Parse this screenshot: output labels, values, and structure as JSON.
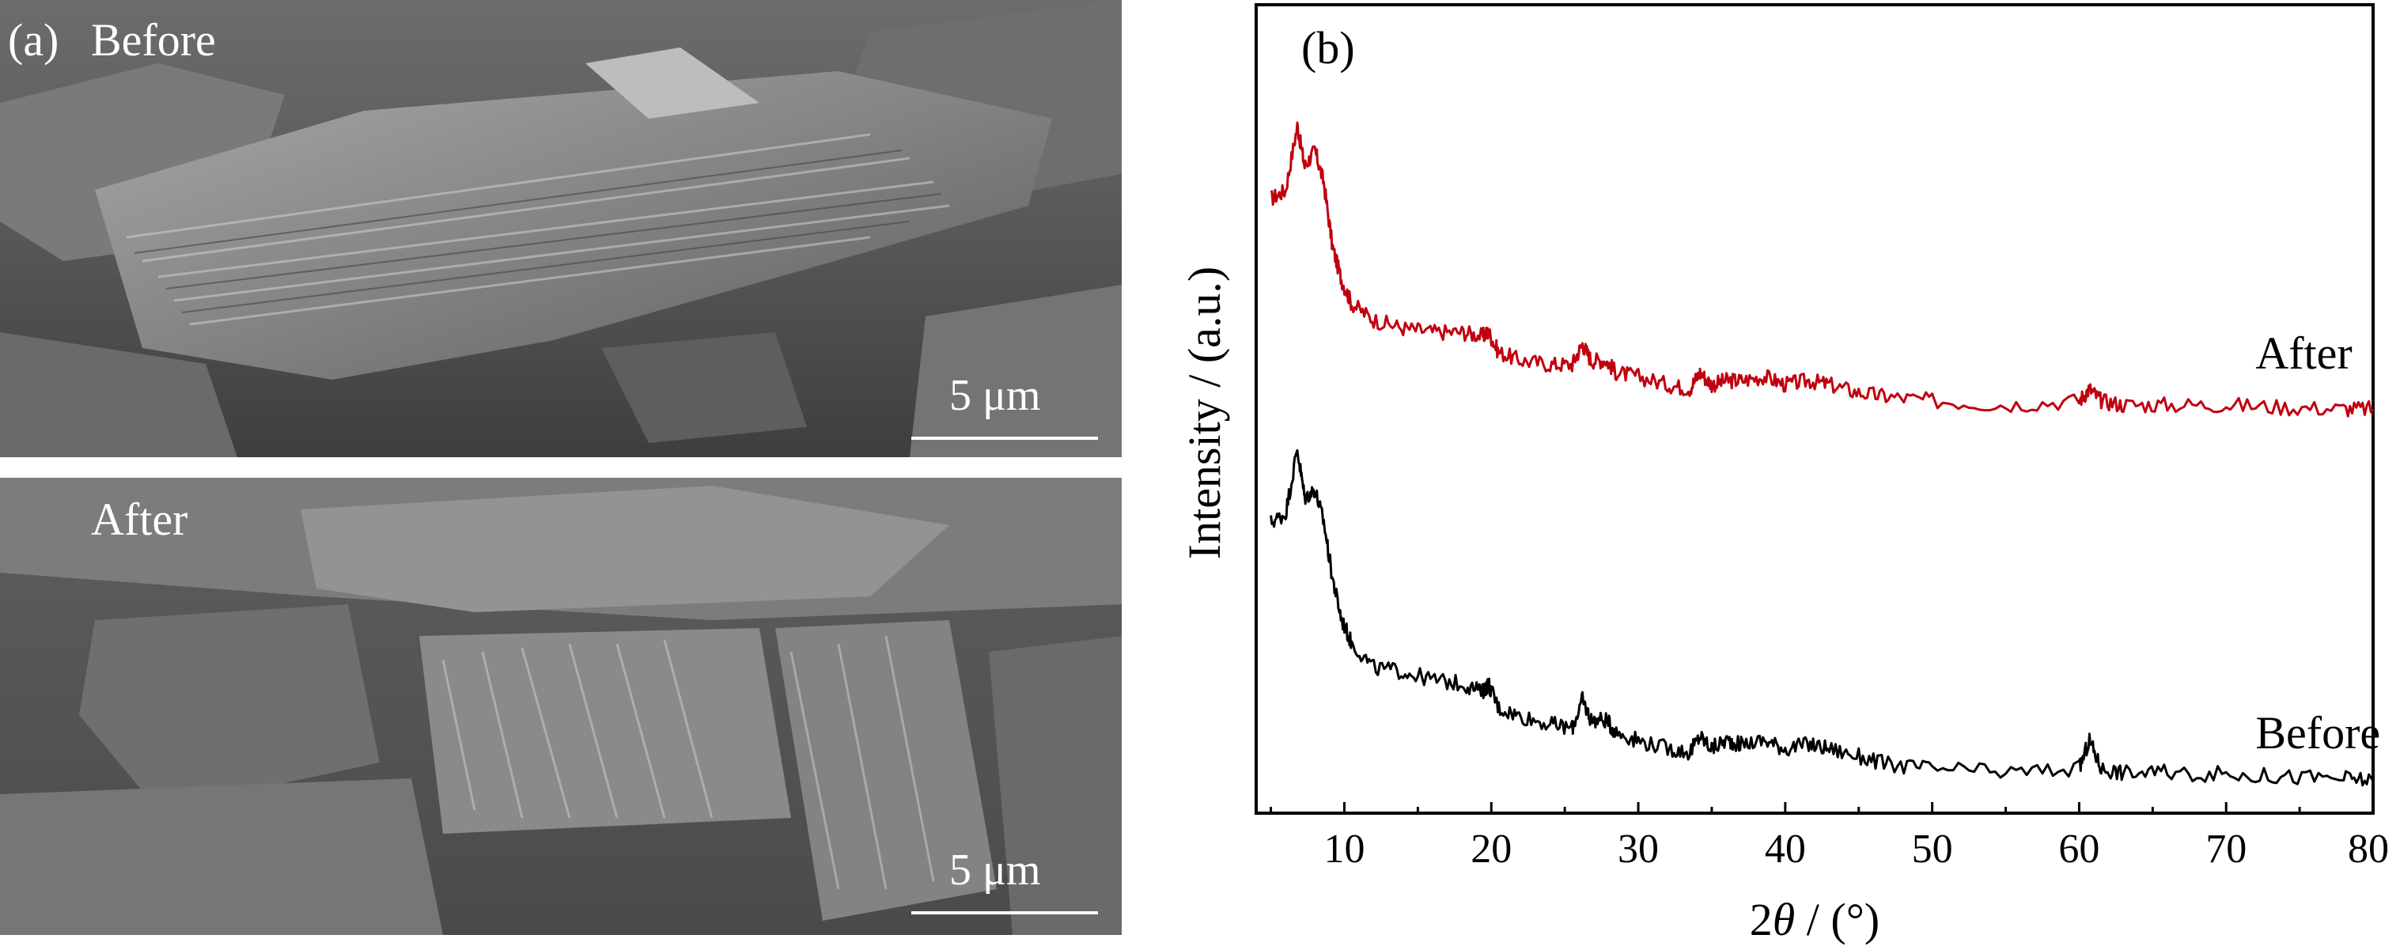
{
  "figure": {
    "panel_a": {
      "letter": "(a)",
      "top_label": "Before",
      "bottom_label": "After",
      "scale_label_top": "5 μm",
      "scale_label_bottom": "5 μm"
    },
    "panel_b": {
      "letter": "(b)"
    }
  },
  "chart_data": {
    "type": "line",
    "title": "",
    "xlabel": "2θ / (°)",
    "ylabel": "Intensity / (a.u.)",
    "xlim": [
      4,
      80
    ],
    "ylim": [
      0,
      1
    ],
    "x_ticks": [
      10,
      20,
      30,
      40,
      50,
      60,
      70,
      80
    ],
    "grid": false,
    "legend": "none",
    "series": [
      {
        "name": "After",
        "color": "#c0000f",
        "x": [
          5,
          6,
          6.8,
          7.3,
          8.0,
          8.6,
          9.2,
          9.8,
          10.5,
          12,
          14,
          16,
          18,
          19.4,
          19.8,
          20.5,
          22,
          24,
          25.5,
          26.2,
          26.8,
          27.8,
          28.5,
          30,
          32,
          33.5,
          34.2,
          35,
          36,
          37,
          38.6,
          40,
          41.6,
          43,
          45,
          47,
          50,
          55,
          60,
          60.7,
          61.5,
          63,
          66,
          70,
          74,
          78,
          80
        ],
        "y": [
          0.76,
          0.77,
          0.85,
          0.8,
          0.82,
          0.78,
          0.7,
          0.66,
          0.63,
          0.61,
          0.6,
          0.595,
          0.595,
          0.59,
          0.595,
          0.57,
          0.56,
          0.555,
          0.555,
          0.58,
          0.56,
          0.56,
          0.545,
          0.54,
          0.53,
          0.525,
          0.545,
          0.53,
          0.535,
          0.535,
          0.54,
          0.53,
          0.535,
          0.53,
          0.52,
          0.515,
          0.51,
          0.505,
          0.51,
          0.525,
          0.51,
          0.505,
          0.505,
          0.505,
          0.502,
          0.5,
          0.5
        ]
      },
      {
        "name": "Before",
        "color": "#000000",
        "x": [
          5,
          6,
          6.8,
          7.3,
          8.0,
          8.6,
          9.2,
          9.8,
          10.5,
          12,
          14,
          16,
          18,
          19.4,
          19.8,
          20.5,
          22,
          24,
          25.5,
          26.2,
          26.8,
          27.8,
          28.5,
          30,
          32,
          33.5,
          34.2,
          35,
          36,
          37,
          38.6,
          40,
          41.6,
          43,
          45,
          47,
          50,
          55,
          60,
          60.7,
          61.5,
          63,
          66,
          70,
          74,
          78,
          80
        ],
        "y": [
          0.36,
          0.37,
          0.45,
          0.39,
          0.4,
          0.36,
          0.29,
          0.24,
          0.21,
          0.18,
          0.175,
          0.165,
          0.16,
          0.15,
          0.16,
          0.13,
          0.12,
          0.11,
          0.105,
          0.14,
          0.115,
          0.115,
          0.1,
          0.09,
          0.08,
          0.075,
          0.095,
          0.08,
          0.09,
          0.085,
          0.09,
          0.08,
          0.085,
          0.08,
          0.07,
          0.06,
          0.055,
          0.05,
          0.055,
          0.09,
          0.055,
          0.05,
          0.05,
          0.048,
          0.045,
          0.043,
          0.04
        ]
      }
    ],
    "annotations": [
      {
        "text": "After",
        "x": 72,
        "y": 0.55
      },
      {
        "text": "Before",
        "x": 72,
        "y": 0.08
      }
    ]
  }
}
